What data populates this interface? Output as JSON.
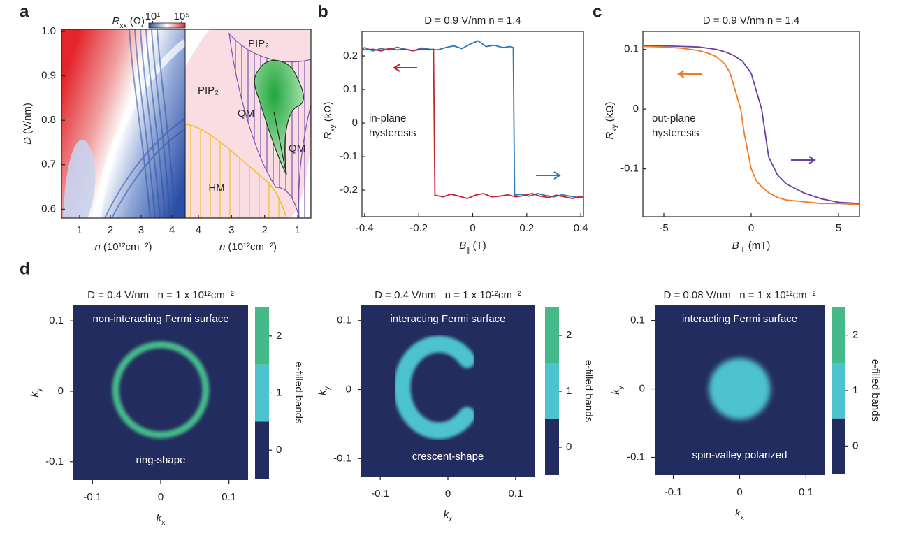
{
  "panel_labels": [
    "a",
    "b",
    "c",
    "d"
  ],
  "chart_data": [
    {
      "type": "heatmap",
      "xlim": [
        0.41,
        4.43
      ],
      "ylim": [
        0.58,
        1.005
      ],
      "xticks": [
        1,
        2,
        3,
        4
      ],
      "yticks": [
        0.6,
        0.7,
        0.8,
        0.9,
        {
          "value": 1,
          "label": "1.0"
        }
      ],
      "xlabel_symbol": "n",
      "xlabel_unit": "(10¹²cm⁻²)",
      "ylabel_symbol": "D",
      "ylabel_unit": "(V/nm)",
      "colorbar_label_symbol": "R",
      "colorbar_label_subscript": "xx",
      "colorbar_label_unit": "(Ω)",
      "colorbar_lim": [
        3,
        300000
      ],
      "colorbar_log": true,
      "colorbar_ticks": [
        {
          "value": 10,
          "label": "10¹"
        },
        {
          "value": 100000,
          "label": "10⁵"
        }
      ],
      "colorbar_colors": [
        "#2b4fa6",
        "#ffffff",
        "#e3262c"
      ]
    },
    {
      "type": "phase-diagram",
      "xlim": [
        4.4,
        0.6
      ],
      "ylim": [
        0.58,
        1.005
      ],
      "xticks": [
        4,
        3,
        2,
        1
      ],
      "xlabel_symbol": "n",
      "xlabel_unit": "(10¹²cm⁻²)",
      "regions": [
        "PIP₂",
        "PIP₂",
        "QM",
        "QM",
        "HM"
      ]
    },
    {
      "type": "line",
      "title": "D = 0.9 V/nm n = 1.4",
      "xlim": [
        -0.41,
        0.41
      ],
      "ylim": [
        -0.279,
        0.273
      ],
      "xticks": [
        -0.4,
        -0.2,
        0,
        0.2,
        0.4
      ],
      "yticks": [
        0.2,
        0.1,
        0,
        -0.1,
        -0.2
      ],
      "ylabel_symbol": "R",
      "ylabel_subscript": "xy",
      "ylabel_unit": "(kΩ)",
      "xlabel_symbol": "B",
      "xlabel_subscript": "∥",
      "xlabel_unit": "(T)",
      "annotation": [
        "in-plane",
        "hysteresis"
      ],
      "series": [
        {
          "color": "#2a78b8",
          "x": [
            -0.41,
            -0.4,
            -0.37,
            -0.34,
            -0.31,
            -0.28,
            -0.25,
            -0.22,
            -0.19,
            -0.16,
            -0.13,
            -0.1,
            -0.07,
            -0.04,
            -0.01,
            0.02,
            0.05,
            0.08,
            0.11,
            0.14,
            0.15,
            0.155,
            0.18,
            0.21,
            0.24,
            0.27,
            0.3,
            0.33,
            0.36,
            0.39,
            0.41
          ],
          "values": [
            0.22,
            0.225,
            0.215,
            0.222,
            0.218,
            0.226,
            0.22,
            0.215,
            0.224,
            0.22,
            0.218,
            0.225,
            0.23,
            0.222,
            0.235,
            0.245,
            0.228,
            0.232,
            0.225,
            0.228,
            0.225,
            -0.215,
            -0.212,
            -0.218,
            -0.21,
            -0.216,
            -0.22,
            -0.214,
            -0.218,
            -0.222,
            -0.22
          ]
        },
        {
          "color": "#c8222f",
          "x": [
            -0.41,
            -0.4,
            -0.37,
            -0.34,
            -0.31,
            -0.28,
            -0.25,
            -0.22,
            -0.19,
            -0.16,
            -0.145,
            -0.14,
            -0.11,
            -0.08,
            -0.05,
            -0.02,
            0.01,
            0.04,
            0.07,
            0.1,
            0.13,
            0.16,
            0.19,
            0.22,
            0.25,
            0.28,
            0.31,
            0.34,
            0.37,
            0.4,
            0.41
          ],
          "values": [
            0.222,
            0.218,
            0.22,
            0.215,
            0.222,
            0.218,
            0.22,
            0.216,
            0.22,
            0.218,
            0.22,
            -0.215,
            -0.22,
            -0.212,
            -0.218,
            -0.225,
            -0.215,
            -0.21,
            -0.22,
            -0.218,
            -0.214,
            -0.22,
            -0.216,
            -0.21,
            -0.218,
            -0.222,
            -0.215,
            -0.22,
            -0.225,
            -0.218,
            -0.222
          ]
        }
      ]
    },
    {
      "type": "line",
      "title": "D = 0.9 V/nm n = 1.4",
      "xlim": [
        -6.2,
        6.2
      ],
      "ylim": [
        -0.18,
        0.13
      ],
      "xticks": [
        -5,
        0,
        5
      ],
      "yticks": [
        0.1,
        0,
        -0.1
      ],
      "ylabel_symbol": "R",
      "ylabel_subscript": "xy",
      "ylabel_unit": "(kΩ)",
      "xlabel_symbol": "B",
      "xlabel_subscript": "⊥",
      "xlabel_unit": "(mT)",
      "annotation": [
        "out-plane",
        "hysteresis"
      ],
      "series": [
        {
          "color": "#6a3fa0",
          "x": [
            -6.2,
            -5,
            -4,
            -3,
            -2,
            -1.5,
            -1,
            -0.5,
            0,
            0.2,
            0.4,
            0.6,
            0.8,
            1,
            1.5,
            2,
            3,
            4,
            5,
            6.2
          ],
          "values": [
            0.106,
            0.106,
            0.105,
            0.104,
            0.1,
            0.096,
            0.09,
            0.08,
            0.06,
            0.04,
            0.02,
            0.0,
            -0.04,
            -0.08,
            -0.11,
            -0.125,
            -0.14,
            -0.15,
            -0.156,
            -0.158
          ]
        },
        {
          "color": "#f47920",
          "x": [
            -6.2,
            -5,
            -4,
            -3,
            -2.5,
            -2,
            -1.5,
            -1.2,
            -1,
            -0.8,
            -0.6,
            -0.4,
            -0.2,
            0,
            0.3,
            0.6,
            1,
            1.5,
            2,
            3,
            4,
            5,
            6.2
          ],
          "values": [
            0.105,
            0.104,
            0.102,
            0.098,
            0.094,
            0.088,
            0.075,
            0.06,
            0.04,
            0.02,
            0.0,
            -0.04,
            -0.07,
            -0.1,
            -0.12,
            -0.13,
            -0.14,
            -0.148,
            -0.152,
            -0.155,
            -0.158,
            -0.158,
            -0.16
          ]
        }
      ]
    },
    {
      "type": "fermi-map",
      "title": "D = 0.4 V/nm   n = 1 x 10¹²cm⁻²",
      "xlim": [
        -0.128,
        0.128
      ],
      "ylim": [
        -0.126,
        0.122
      ],
      "xticks": [
        -0.1,
        0,
        0.1
      ],
      "yticks": [
        0.1,
        0,
        -0.1
      ],
      "xlabel_symbol": "k",
      "xlabel_subscript": "x",
      "ylabel_symbol": "k",
      "ylabel_subscript": "y",
      "annotation_top": "non-interacting Fermi surface",
      "annotation_bottom": "ring-shape",
      "colorbar_label": "e-filled bands",
      "colorbar_levels": [
        -0.5,
        0.5,
        1.5,
        2.5
      ],
      "colorbar_ticks": [
        0,
        1,
        2
      ],
      "colorbar_colors": [
        "#232c5e",
        "#4dc3cf",
        "#45b98a"
      ]
    },
    {
      "type": "fermi-map",
      "title": "D = 0.4 V/nm   n = 1 x 10¹²cm⁻²",
      "xlim": [
        -0.128,
        0.128
      ],
      "ylim": [
        -0.126,
        0.122
      ],
      "xticks": [
        -0.1,
        0,
        0.1
      ],
      "yticks": [
        0.1,
        0,
        -0.1
      ],
      "xlabel_symbol": "k",
      "xlabel_subscript": "x",
      "ylabel_symbol": "k",
      "ylabel_subscript": "y",
      "annotation_top": "interacting Fermi surface",
      "annotation_bottom": "crescent-shape",
      "colorbar_label": "e-filled bands",
      "colorbar_levels": [
        -0.5,
        0.5,
        1.5,
        2.5
      ],
      "colorbar_ticks": [
        0,
        1,
        2
      ],
      "colorbar_colors": [
        "#232c5e",
        "#4dc3cf",
        "#45b98a"
      ]
    },
    {
      "type": "fermi-map",
      "title": "D = 0.08 V/nm   n = 1 x 10¹²cm⁻²",
      "xlim": [
        -0.128,
        0.128
      ],
      "ylim": [
        -0.126,
        0.122
      ],
      "xticks": [
        -0.1,
        0,
        0.1
      ],
      "yticks": [
        0.1,
        0,
        -0.1
      ],
      "xlabel_symbol": "k",
      "xlabel_subscript": "x",
      "ylabel_symbol": "k",
      "ylabel_subscript": "y",
      "annotation_top": "interacting Fermi surface",
      "annotation_bottom": "spin-valley polarized",
      "colorbar_label": "e-filled bands",
      "colorbar_levels": [
        -0.5,
        0.5,
        1.5,
        2.5
      ],
      "colorbar_ticks": [
        0,
        1,
        2
      ],
      "colorbar_colors": [
        "#232c5e",
        "#4dc3cf",
        "#45b98a"
      ]
    }
  ]
}
